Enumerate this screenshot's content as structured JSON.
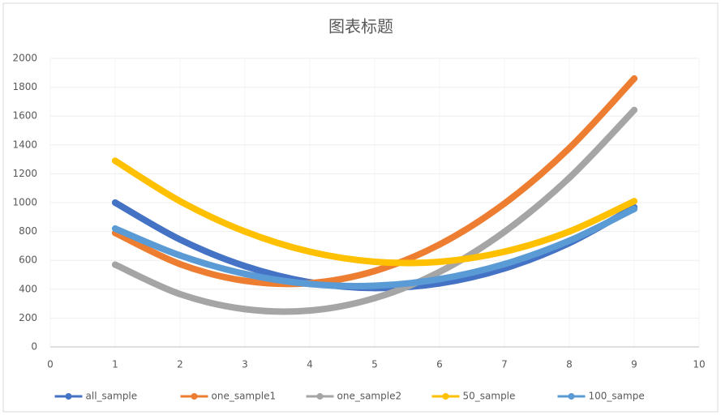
{
  "chart_data": {
    "type": "scatter-smooth",
    "title": "图表标题",
    "x": [
      1,
      2,
      3,
      4,
      5,
      6,
      7,
      8,
      9
    ],
    "series": [
      {
        "name": "all_sample",
        "color": "#4472c4",
        "values": [
          1000,
          744,
          560,
          448,
          408,
          440,
          544,
          720,
          968
        ]
      },
      {
        "name": "one_sample1",
        "color": "#ed7d31",
        "values": [
          790,
          574,
          458,
          442,
          526,
          710,
          994,
          1378,
          1860
        ]
      },
      {
        "name": "one_sample2",
        "color": "#a5a5a5",
        "values": [
          570,
          366,
          262,
          252,
          338,
          520,
          798,
          1172,
          1642
        ]
      },
      {
        "name": "50_sample",
        "color": "#ffc000",
        "values": [
          1290,
          1010,
          800,
          660,
          590,
          590,
          660,
          800,
          1010
        ]
      },
      {
        "name": "100_sampe",
        "color": "#5b9bd5",
        "values": [
          820,
          634,
          506,
          436,
          424,
          470,
          574,
          736,
          956
        ]
      }
    ],
    "xlim": [
      0,
      10
    ],
    "xticks": [
      0,
      1,
      2,
      3,
      4,
      5,
      6,
      7,
      8,
      9,
      10
    ],
    "ylim": [
      0,
      2000
    ],
    "yticks": [
      0,
      200,
      400,
      600,
      800,
      1000,
      1200,
      1400,
      1600,
      1800,
      2000
    ],
    "grid": true,
    "legend": "bottom"
  }
}
